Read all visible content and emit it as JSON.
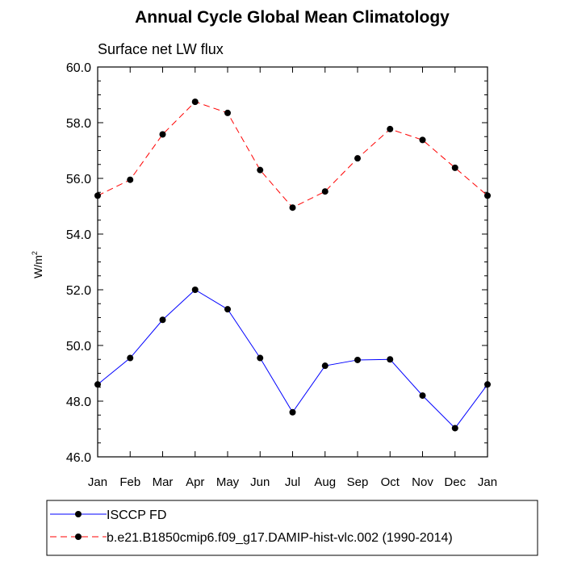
{
  "chart_data": {
    "type": "line",
    "title": "Annual Cycle Global Mean Climatology",
    "subtitle": "Surface net LW flux",
    "xlabel": "",
    "ylabel_base": "W/m",
    "ylabel_superscript": "2",
    "ylim": [
      46.0,
      60.0
    ],
    "yticks": [
      "46.0",
      "48.0",
      "50.0",
      "52.0",
      "54.0",
      "56.0",
      "58.0",
      "60.0"
    ],
    "ytick_values": [
      46,
      48,
      50,
      52,
      54,
      56,
      58,
      60
    ],
    "categories": [
      "Jan",
      "Feb",
      "Mar",
      "Apr",
      "May",
      "Jun",
      "Jul",
      "Aug",
      "Sep",
      "Oct",
      "Nov",
      "Dec",
      "Jan"
    ],
    "grid": false,
    "legend_position": "bottom",
    "series": [
      {
        "name": "ISCCP FD",
        "color": "#0000ff",
        "dash": "solid",
        "values": [
          48.6,
          49.55,
          50.92,
          52.0,
          51.3,
          49.55,
          47.6,
          49.27,
          49.48,
          49.5,
          48.2,
          47.03,
          48.6
        ]
      },
      {
        "name": "b.e21.B1850cmip6.f09_g17.DAMIP-hist-vlc.002 (1990-2014)",
        "color": "#ff0000",
        "dash": "dashed",
        "values": [
          55.38,
          55.95,
          57.58,
          58.75,
          58.35,
          56.3,
          54.95,
          55.53,
          56.72,
          57.77,
          57.38,
          56.38,
          55.38
        ]
      }
    ]
  }
}
